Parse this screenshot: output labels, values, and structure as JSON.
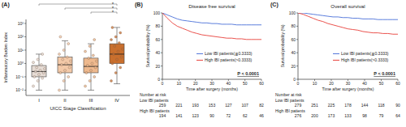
{
  "chart_data": [
    {
      "type": "box",
      "panel_label": "(A)",
      "ylabel": "Inflammatory Burden Index",
      "xlabel": "UICC Stage Classification",
      "categories": [
        "I",
        "II",
        "III",
        "IV"
      ],
      "log": "y",
      "ylim": [
        0.004,
        2000
      ],
      "yticks": [
        {
          "value": 0.01,
          "label": "10⁻²"
        },
        {
          "value": 0.1,
          "label": "10⁻¹"
        },
        {
          "value": 1,
          "label": "10⁰"
        },
        {
          "value": 10,
          "label": "10¹"
        },
        {
          "value": 100,
          "label": "10²"
        },
        {
          "value": 1000,
          "label": "10³"
        }
      ],
      "colors": [
        "#e6dcd5",
        "#f3c9a8",
        "#eeb98e",
        "#c96f2d"
      ],
      "boxes": [
        {
          "whisker_low": 0.01,
          "q1": 0.1,
          "median": 0.25,
          "q3": 0.7,
          "whisker_high": 5
        },
        {
          "whisker_low": 0.01,
          "q1": 0.2,
          "median": 0.8,
          "q3": 3,
          "whisker_high": 50
        },
        {
          "whisker_low": 0.01,
          "q1": 0.2,
          "median": 0.6,
          "q3": 2.5,
          "whisker_high": 30
        },
        {
          "whisker_low": 0.03,
          "q1": 1,
          "median": 5,
          "q3": 30,
          "whisker_high": 500
        }
      ],
      "points": [
        [
          0.02,
          0.05,
          0.08,
          0.1,
          0.15,
          0.2,
          0.25,
          0.3,
          0.4,
          0.5,
          0.8,
          1.2,
          2,
          5
        ],
        [
          0.01,
          0.05,
          0.1,
          0.2,
          0.3,
          0.5,
          0.8,
          1,
          1.5,
          2,
          3,
          5,
          10,
          30,
          100
        ],
        [
          0.02,
          0.05,
          0.1,
          0.2,
          0.3,
          0.5,
          0.7,
          1,
          1.5,
          2.5,
          4,
          8,
          20,
          60
        ],
        [
          0.05,
          0.2,
          0.5,
          1,
          2,
          3,
          5,
          8,
          12,
          20,
          35,
          60,
          100,
          200,
          500
        ]
      ],
      "significance": [
        {
          "from": "I",
          "to": "IV",
          "label": "*"
        },
        {
          "from": "II",
          "to": "IV",
          "label": "*"
        },
        {
          "from": "III",
          "to": "IV",
          "label": "*"
        }
      ]
    },
    {
      "type": "line",
      "panel_label": "(B)",
      "title": "Disease free survival",
      "xlabel": "Time after surgery (months)",
      "ylabel": "Survival probability (%)",
      "x": [
        0,
        3,
        6,
        9,
        12,
        15,
        18,
        21,
        24,
        27,
        30,
        33,
        36,
        39,
        42,
        45,
        48,
        51,
        54,
        57,
        60
      ],
      "xlim": [
        0,
        60
      ],
      "xticks": [
        0,
        10,
        20,
        30,
        40,
        50,
        60
      ],
      "ylim": [
        0,
        100
      ],
      "yticks": [
        0,
        20,
        40,
        60,
        80,
        100
      ],
      "legend": "lower right",
      "series": [
        {
          "name": "Low IBI patients(≦0.3333)",
          "color": "#4a6fd8",
          "values": [
            100,
            97,
            94,
            91,
            89,
            88,
            87,
            86,
            85,
            85,
            84,
            84,
            83,
            83,
            83,
            82,
            82,
            82,
            82,
            82,
            82
          ]
        },
        {
          "name": "High IBI patients(>0.3333)",
          "color": "#e8403a",
          "values": [
            100,
            92,
            85,
            80,
            77,
            74,
            71,
            69,
            67,
            66,
            65,
            64,
            63,
            62,
            62,
            61,
            61,
            60,
            60,
            60,
            60
          ]
        }
      ],
      "annotation": "P < 0.0001",
      "risk_table": {
        "title": "Number at risk",
        "rows": [
          {
            "name": "Low IBI patients",
            "values": [
              259,
              221,
              193,
              153,
              127,
              107,
              82
            ]
          },
          {
            "name": "High IBI patients",
            "values": [
              194,
              141,
              123,
              90,
              72,
              62,
              46
            ]
          }
        ]
      }
    },
    {
      "type": "line",
      "panel_label": "(C)",
      "title": "Overall survival",
      "xlabel": "Time after surgery (months)",
      "ylabel": "Survival probability (%)",
      "x": [
        0,
        3,
        6,
        9,
        12,
        15,
        18,
        21,
        24,
        27,
        30,
        33,
        36,
        39,
        42,
        45,
        48,
        51,
        54,
        57,
        60
      ],
      "xlim": [
        0,
        60
      ],
      "xticks": [
        0,
        10,
        20,
        30,
        40,
        50,
        60
      ],
      "ylim": [
        0,
        100
      ],
      "yticks": [
        0,
        20,
        40,
        60,
        80,
        100
      ],
      "legend": "lower right",
      "series": [
        {
          "name": "Low IBI patients(≦0.3333)",
          "color": "#4a6fd8",
          "values": [
            100,
            100,
            99,
            98,
            97,
            96,
            95,
            94,
            94,
            93,
            93,
            92,
            92,
            91,
            91,
            91,
            90,
            90,
            90,
            90,
            90
          ]
        },
        {
          "name": "High IBI patients(>0.3333)",
          "color": "#e8403a",
          "values": [
            100,
            98,
            95,
            92,
            89,
            87,
            84,
            82,
            80,
            78,
            76,
            75,
            74,
            72,
            71,
            70,
            70,
            69,
            69,
            68,
            68
          ]
        }
      ],
      "annotation": "P < 0.0001",
      "risk_table": {
        "title": "Number at risk",
        "rows": [
          {
            "name": "Low IBI patients",
            "values": [
              279,
              251,
              225,
              178,
              144,
              118,
              90
            ]
          },
          {
            "name": "High IBI patients",
            "values": [
              276,
              200,
              173,
              133,
              98,
              79,
              64
            ]
          }
        ]
      }
    }
  ]
}
